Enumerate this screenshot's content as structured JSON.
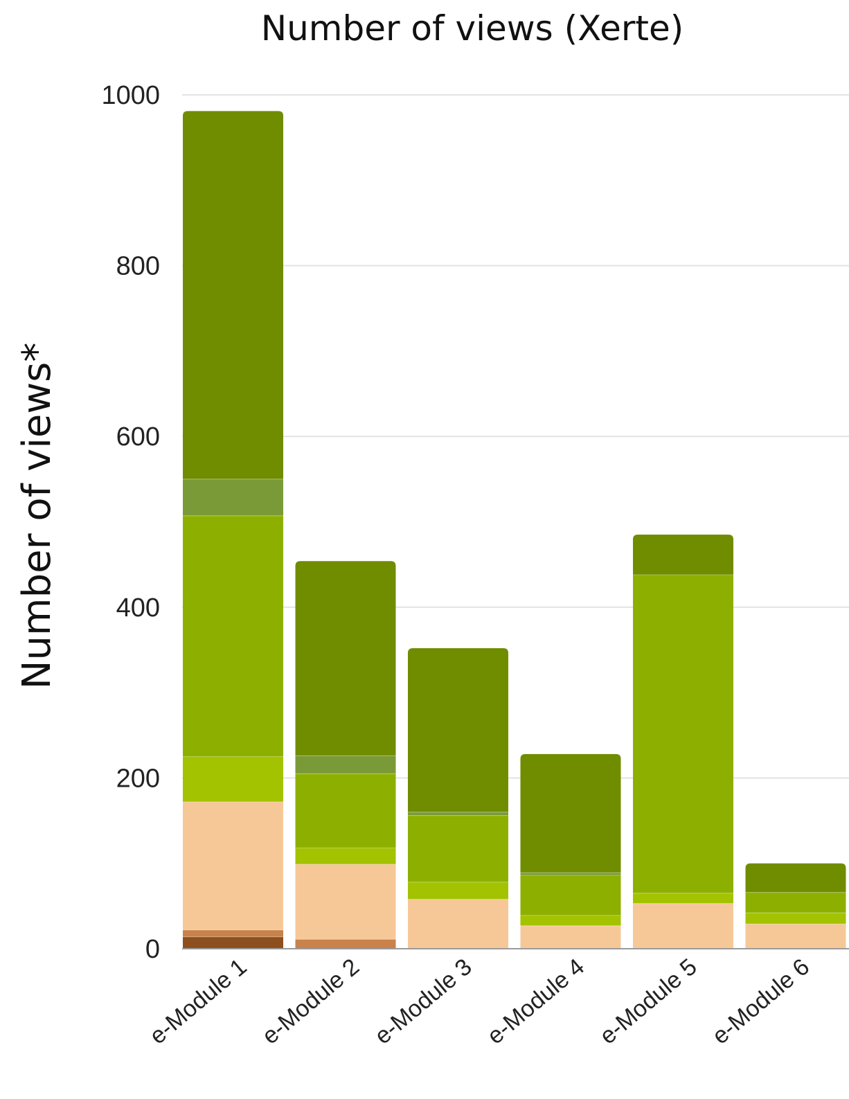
{
  "chart_data": {
    "type": "bar",
    "stacked": true,
    "title": "Number of views (Xerte)",
    "xlabel": "",
    "ylabel": "Number of views*",
    "ylim": [
      0,
      1000
    ],
    "yticks": [
      0,
      200,
      400,
      600,
      800,
      1000
    ],
    "grid": true,
    "categories": [
      "e-Module 1",
      "e-Module 2",
      "e-Module 3",
      "e-Module 4",
      "e-Module 5",
      "e-Module 6"
    ],
    "series": [
      {
        "color": "#8e4f1f",
        "values": [
          14,
          0,
          0,
          0,
          0,
          0
        ]
      },
      {
        "color": "#c8824a",
        "values": [
          8,
          11,
          0,
          0,
          0,
          0
        ]
      },
      {
        "color": "#f6c898",
        "values": [
          150,
          88,
          58,
          27,
          53,
          29
        ]
      },
      {
        "color": "#a3c200",
        "values": [
          53,
          19,
          20,
          12,
          12,
          13
        ]
      },
      {
        "color": "#8db000",
        "values": [
          282,
          87,
          78,
          47,
          373,
          24
        ]
      },
      {
        "color": "#7a9a38",
        "values": [
          43,
          21,
          4,
          3,
          0,
          0
        ]
      },
      {
        "color": "#708d00",
        "values": [
          431,
          228,
          192,
          139,
          47,
          34
        ]
      }
    ]
  }
}
